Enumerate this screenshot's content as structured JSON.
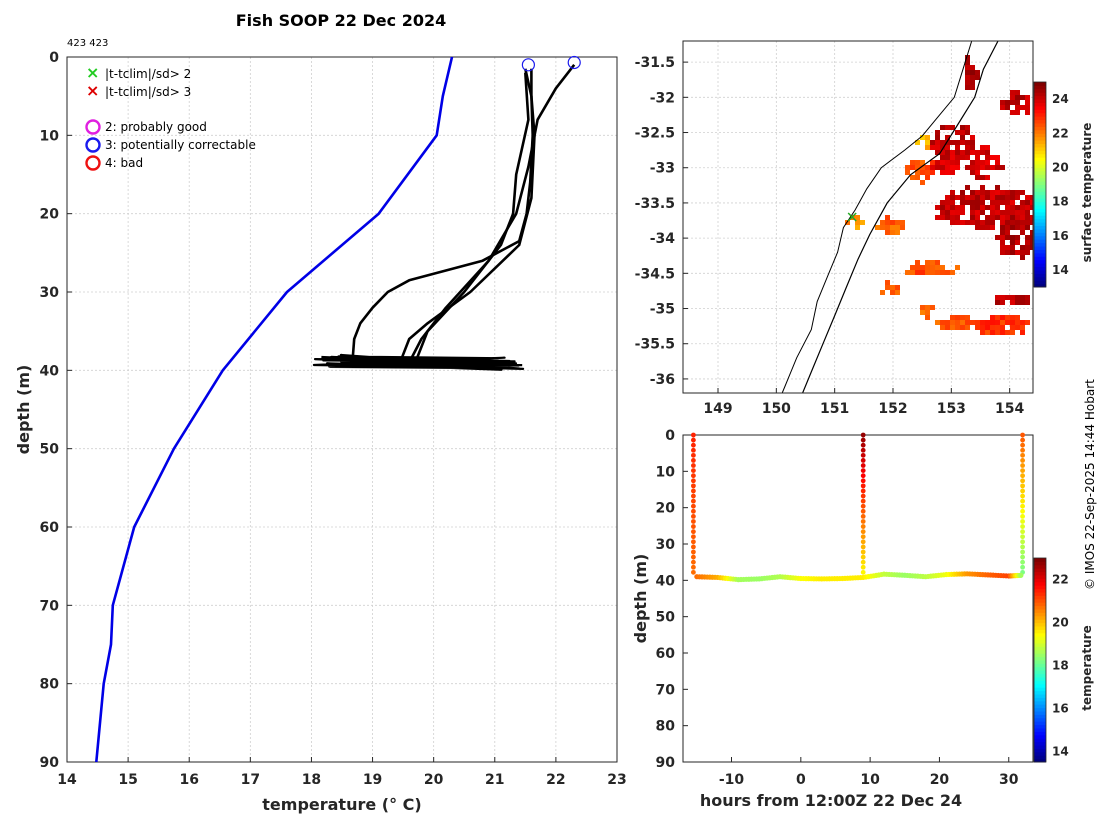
{
  "title": "Fish SOOP 22 Dec 2024",
  "id_label": "423 423",
  "credit": "© IMOS 22-Sep-2025 14:44 Hobart",
  "legend": {
    "markers": [
      {
        "symbol": "×",
        "color": "#22cc22",
        "label": "|t-tclim|/sd> 2"
      },
      {
        "symbol": "×",
        "color": "#dd0000",
        "label": "|t-tclim|/sd> 3"
      }
    ],
    "circles": [
      {
        "color": "#e020e0",
        "label": "2: probably good"
      },
      {
        "color": "#1a1aee",
        "label": "3: potentially correctable"
      },
      {
        "color": "#ee1111",
        "label": "4: bad"
      }
    ]
  },
  "chart_data": [
    {
      "type": "line",
      "panel": "profile",
      "xlabel": "temperature (° C)",
      "ylabel": "depth (m)",
      "xlim": [
        14,
        23
      ],
      "ylim": [
        0,
        90
      ],
      "y_reversed": true,
      "x_ticks": [
        "14",
        "15",
        "16",
        "17",
        "18",
        "19",
        "20",
        "21",
        "22",
        "23"
      ],
      "y_ticks": [
        "0",
        "10",
        "20",
        "30",
        "40",
        "50",
        "60",
        "70",
        "80",
        "90"
      ],
      "grid": true,
      "series": [
        {
          "color": "#0000e6",
          "x": [
            20.3,
            20.15,
            20.05,
            19.1,
            17.6,
            16.55,
            15.75,
            15.1,
            14.75,
            14.72,
            14.6,
            14.48
          ],
          "y": [
            0,
            5,
            10,
            20,
            30,
            40,
            50,
            60,
            70,
            75,
            80,
            90
          ]
        },
        {
          "color": "#000000",
          "x": [
            21.6,
            21.6,
            21.62,
            21.58,
            21.52,
            21.4,
            20.8,
            19.6,
            19.25,
            19.0,
            18.8,
            18.7,
            18.68,
            18.65
          ],
          "y": [
            1.5,
            5,
            10,
            16,
            20,
            23.5,
            26,
            28.5,
            30,
            32,
            34,
            36,
            38,
            39
          ]
        },
        {
          "color": "#000000",
          "x": [
            21.5,
            21.6,
            21.65,
            21.6,
            21.4,
            20.6,
            19.9,
            19.6,
            19.5,
            19.45
          ],
          "y": [
            1.5,
            5,
            10,
            18,
            24,
            30,
            34,
            36,
            38,
            39
          ]
        },
        {
          "color": "#000000",
          "x": [
            22.3,
            22.0,
            21.7,
            21.55,
            21.35,
            20.9,
            20.2,
            19.8,
            19.6
          ],
          "y": [
            1,
            4,
            8,
            14,
            20,
            26,
            32,
            36,
            39
          ]
        },
        {
          "color": "#000000",
          "x": [
            21.5,
            21.55,
            21.35,
            21.3,
            21.1,
            20.5,
            19.9,
            19.7
          ],
          "y": [
            2,
            8,
            15,
            20,
            24,
            30,
            35,
            39
          ]
        }
      ],
      "flag_circles": [
        {
          "x": 21.55,
          "y": 1,
          "flag": 3
        },
        {
          "x": 22.3,
          "y": 0.7,
          "flag": 3
        }
      ],
      "oscillation_band": {
        "x_range": [
          18.0,
          21.5
        ],
        "depth_range": [
          38.0,
          40.0
        ]
      }
    },
    {
      "type": "heatmap",
      "panel": "surface map",
      "colorbar_label": "surface temperature",
      "colorbar_range": [
        13,
        25
      ],
      "colorbar_ticks": [
        "14",
        "16",
        "18",
        "20",
        "22",
        "24"
      ],
      "xlim": [
        148.4,
        154.4
      ],
      "ylim": [
        -36.2,
        -31.2
      ],
      "x_ticks": [
        "149",
        "150",
        "151",
        "152",
        "153",
        "154"
      ],
      "y_ticks": [
        "-31.5",
        "-32",
        "-32.5",
        "-33",
        "-33.5",
        "-34",
        "-34.5",
        "-35",
        "-35.5",
        "-36"
      ],
      "ship_position": {
        "lon": 151.3,
        "lat": -33.7
      }
    },
    {
      "type": "scatter",
      "panel": "depth-time section",
      "xlabel": "hours from 12:00Z 22 Dec 24",
      "ylabel": "depth (m)",
      "colorbar_label": "temperature",
      "colorbar_range": [
        13.5,
        23
      ],
      "colorbar_ticks": [
        "14",
        "16",
        "18",
        "20",
        "22"
      ],
      "xlim": [
        -17,
        33.5
      ],
      "ylim": [
        0,
        90
      ],
      "y_reversed": true,
      "x_ticks": [
        "-10",
        "0",
        "10",
        "20",
        "30"
      ],
      "y_ticks": [
        "0",
        "10",
        "20",
        "30",
        "40",
        "50",
        "60",
        "70",
        "80",
        "90"
      ],
      "profiles": [
        {
          "time": -15.5,
          "temp_surface": 21.5,
          "temp_bottom": 20.8
        },
        {
          "time": 9.0,
          "temp_surface": 22.8,
          "temp_bottom": 19.5
        },
        {
          "time": 32.0,
          "temp_surface": 21.0,
          "temp_bottom": 18.2
        }
      ],
      "bottom_track": {
        "time": [
          -15,
          -12,
          -9,
          -6,
          -3,
          0,
          3,
          6,
          9,
          12,
          15,
          18,
          21,
          24,
          27,
          30,
          32
        ],
        "depth": [
          39,
          39.2,
          39.8,
          39.6,
          39.0,
          39.5,
          39.6,
          39.5,
          39.2,
          38.3,
          38.6,
          39.0,
          38.4,
          38.2,
          38.5,
          38.8,
          38.6
        ],
        "temp": [
          20.8,
          20.2,
          18.6,
          18.5,
          18.7,
          19.4,
          19.6,
          19.6,
          19.6,
          18.9,
          18.5,
          18.8,
          19.3,
          20.4,
          20.9,
          21.2,
          18.2
        ]
      }
    }
  ]
}
